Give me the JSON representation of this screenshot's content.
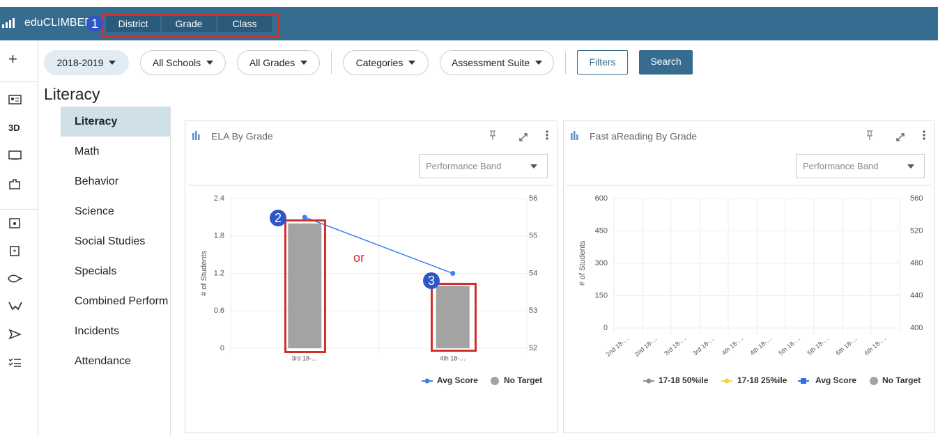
{
  "header": {
    "brand": "eduCLIMBER",
    "tabs": [
      "District",
      "Grade",
      "Class"
    ]
  },
  "sidebar": {
    "plus": "+",
    "label_3d": "3D"
  },
  "filters": {
    "dropdowns": [
      "2018-2019",
      "All Schools",
      "All Grades",
      "Categories",
      "Assessment Suite"
    ],
    "buttons": [
      "Filters",
      "Search"
    ]
  },
  "page_title": "Literacy",
  "menu": {
    "items": [
      "Literacy",
      "Math",
      "Behavior",
      "Science",
      "Social Studies",
      "Specials",
      "Combined Perform",
      "Incidents",
      "Attendance"
    ],
    "selected": 0
  },
  "annotations": {
    "badges": [
      "1",
      "2",
      "3"
    ],
    "note": "or"
  },
  "chart_data": [
    {
      "type": "bar",
      "title": "ELA By Grade",
      "selector": "Performance Band",
      "y_label": "# of Students",
      "categories": [
        "3rd 18-…",
        "4th 18-…"
      ],
      "ylim": [
        0,
        2.4
      ],
      "yticks": [
        0,
        0.6,
        1.2,
        1.8,
        2.4
      ],
      "y2lim": [
        52,
        56
      ],
      "y2ticks": [
        52,
        53,
        54,
        55,
        56
      ],
      "grid": true,
      "series": [
        {
          "name": "Avg Score",
          "color": "#3b82f0",
          "axis": "y2",
          "style": "line",
          "values": [
            55.5,
            54.0
          ]
        },
        {
          "name": "No Target",
          "color": "#a3a3a3",
          "style": "bar",
          "values": [
            2,
            1
          ]
        }
      ]
    },
    {
      "type": "bar",
      "title": "Fast aReading By Grade",
      "selector": "Performance Band",
      "y_label": "# of Students",
      "categories": [
        "2nd 18-…",
        "2nd 18-…",
        "3rd 18-…",
        "3rd 18-…",
        "4th 18-…",
        "4th 18-…",
        "5th 18-…",
        "5th 18-…",
        "6th 18-…",
        "6th 18-…"
      ],
      "ylim": [
        0,
        600
      ],
      "yticks": [
        0,
        150,
        300,
        450,
        600
      ],
      "y2lim": [
        400,
        560
      ],
      "y2ticks": [
        400,
        440,
        480,
        520,
        560
      ],
      "grid": true,
      "series": [
        {
          "name": "17-18 50%ile",
          "color": "#8a8d96",
          "axis": "y2",
          "style": "line",
          "values": [
            null,
            null,
            null,
            null,
            null,
            null,
            null,
            null,
            null,
            null
          ]
        },
        {
          "name": "17-18 25%ile",
          "color": "#f2d33b",
          "axis": "y2",
          "style": "line",
          "values": [
            null,
            null,
            null,
            null,
            null,
            null,
            null,
            null,
            null,
            null
          ]
        },
        {
          "name": "Avg Score",
          "color": "#2f6fe0",
          "axis": "y2",
          "style": "square",
          "values": [
            null,
            null,
            null,
            null,
            null,
            null,
            null,
            null,
            null,
            null
          ]
        },
        {
          "name": "No Target",
          "color": "#a3a3a3",
          "style": "bar",
          "values": [
            null,
            null,
            null,
            null,
            null,
            null,
            null,
            null,
            null,
            null
          ]
        }
      ]
    }
  ]
}
